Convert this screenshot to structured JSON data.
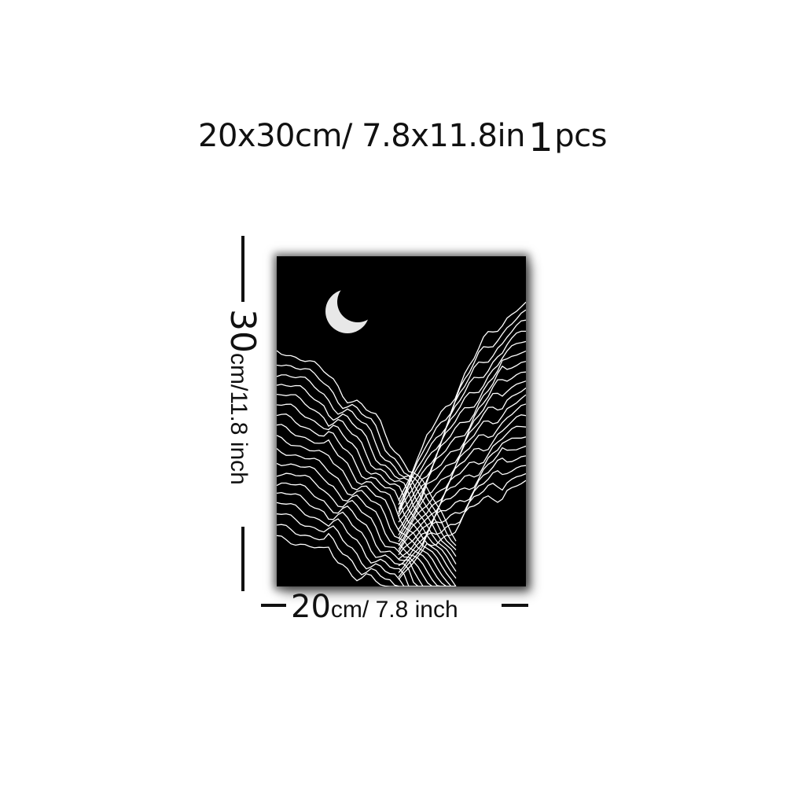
{
  "header": {
    "size_text": "20x30cm/ 7.8x11.8in",
    "qty_number": "1",
    "qty_unit": "pcs"
  },
  "dimensions": {
    "height_value": "30",
    "height_unit_text": "cm/11.8 inch",
    "width_value": "20",
    "width_unit_text": "cm/ 7.8 inch"
  },
  "artwork": {
    "background_color": "#000000",
    "line_color": "#ffffff",
    "moon_icon": "crescent-moon-icon"
  }
}
